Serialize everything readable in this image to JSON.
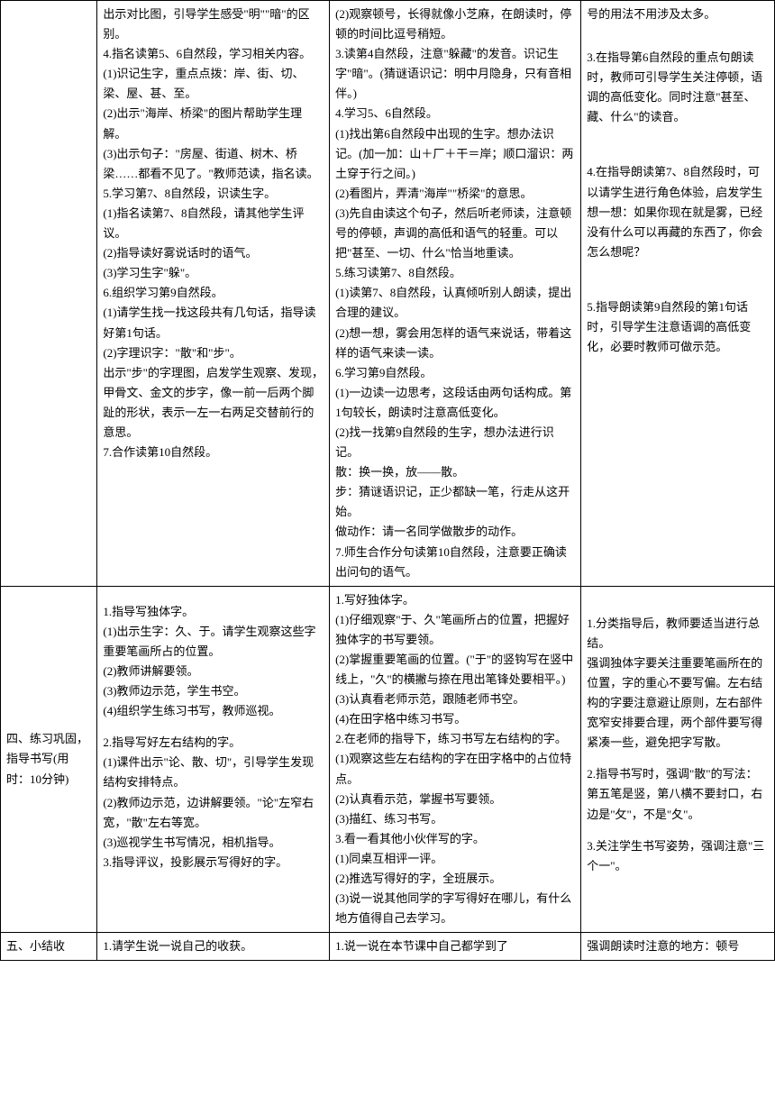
{
  "row1": {
    "col1": "",
    "col2_lines": [
      "出示对比图，引导学生感受\"明\"\"暗\"的区别。",
      "4.指名读第5、6自然段，学习相关内容。",
      "(1)识记生字，重点点拨：岸、街、切、梁、屋、甚、至。",
      "(2)出示\"海岸、桥梁\"的图片帮助学生理解。",
      "(3)出示句子：\"房屋、街道、树木、桥梁……都看不见了。\"教师范读，指名读。",
      "5.学习第7、8自然段，识读生字。",
      "(1)指名读第7、8自然段，请其他学生评议。",
      "(2)指导读好雾说话时的语气。",
      "(3)学习生字\"躲\"。",
      "6.组织学习第9自然段。",
      "(1)请学生找一找这段共有几句话，指导读好第1句话。",
      "(2)字理识字：\"散\"和\"步\"。",
      "出示\"步\"的字理图，启发学生观察、发现，甲骨文、金文的步字，像一前一后两个脚趾的形状，表示一左一右两足交替前行的意思。",
      "7.合作读第10自然段。"
    ],
    "col3_lines": [
      "(2)观察顿号，长得就像小芝麻，在朗读时，停顿的时间比逗号稍短。",
      "3.读第4自然段，注意\"躲藏\"的发音。识记生字\"暗\"。(猜谜语识记：明中月隐身，只有音相伴。)",
      "4.学习5、6自然段。",
      "(1)找出第6自然段中出现的生字。想办法识记。(加一加：山＋厂＋干＝岸；顺口溜识：两土穿于行之间。)",
      "(2)看图片，弄清\"海岸\"\"桥梁\"的意思。",
      "(3)先自由读这个句子，然后听老师读，注意顿号的停顿，声调的高低和语气的轻重。可以把\"甚至、一切、什么\"恰当地重读。",
      "5.练习读第7、8自然段。",
      "(1)读第7、8自然段，认真倾听别人朗读，提出合理的建议。",
      "(2)想一想，雾会用怎样的语气来说话，带着这样的语气来读一读。",
      "6.学习第9自然段。",
      "(1)一边读一边思考，这段话由两句话构成。第1句较长，朗读时注意高低变化。",
      "(2)找一找第9自然段的生字，想办法进行识记。",
      "散：换一换，放——散。",
      "步：猜谜语识记，正少都缺一笔，行走从这开始。",
      "做动作：请一名同学做散步的动作。",
      "7.师生合作分句读第10自然段，注意要正确读出问句的语气。"
    ],
    "col4_lines": [
      "号的用法不用涉及太多。",
      "",
      "",
      "3.在指导第6自然段的重点句朗读时，教师可引导学生关注停顿，语调的高低变化。同时注意\"甚至、藏、什么\"的读音。",
      "",
      "",
      "",
      "4.在指导朗读第7、8自然段时，可以请学生进行角色体验，启发学生想一想：如果你现在就是雾，已经没有什么可以再藏的东西了，你会怎么想呢？",
      "",
      "",
      "",
      "5.指导朗读第9自然段的第1句话时，引导学生注意语调的高低变化，必要时教师可做示范。"
    ]
  },
  "row2": {
    "col1": "四、练习巩固，指导书写(用时：10分钟)",
    "col2_lines": [
      "",
      "1.指导写独体字。",
      "(1)出示生字：久、于。请学生观察这些字重要笔画所占的位置。",
      "(2)教师讲解要领。",
      "(3)教师边示范，学生书空。",
      "(4)组织学生练习书写，教师巡视。",
      "",
      "2.指导写好左右结构的字。",
      "(1)课件出示\"论、散、切\"，引导学生发现结构安排特点。",
      "(2)教师边示范，边讲解要领。\"论\"左窄右宽，\"散\"左右等宽。",
      "(3)巡视学生书写情况，相机指导。",
      "3.指导评议，投影展示写得好的字。"
    ],
    "col3_lines": [
      "1.写好独体字。",
      "(1)仔细观察\"于、久\"笔画所占的位置，把握好独体字的书写要领。",
      "(2)掌握重要笔画的位置。(\"于\"的竖钩写在竖中线上，\"久\"的横撇与捺在甩出笔锋处要相平。)",
      "(3)认真看老师示范，跟随老师书空。",
      "(4)在田字格中练习书写。",
      "2.在老师的指导下，练习书写左右结构的字。",
      "(1)观察这些左右结构的字在田字格中的占位特点。",
      "(2)认真看示范，掌握书写要领。",
      "(3)描红、练习书写。",
      "3.看一看其他小伙伴写的字。",
      "(1)同桌互相评一评。",
      "(2)推选写得好的字，全班展示。",
      "(3)说一说其他同学的字写得好在哪儿，有什么地方值得自己去学习。"
    ],
    "col4_lines": [
      "",
      "",
      "1.分类指导后，教师要适当进行总结。",
      "强调独体字要关注重要笔画所在的位置，字的重心不要写偏。左右结构的字要注意避让原则，左右部件宽窄安排要合理，两个部件要写得紧凑一些，避免把字写散。",
      "",
      "2.指导书写时，强调\"散\"的写法：　第五笔是竖，第八横不要封口，右边是\"攵\"，不是\"夂\"。",
      "",
      "3.关注学生书写姿势，强调注意\"三个一\"。"
    ]
  },
  "row3": {
    "col1": "五、小结收",
    "col2": "1.请学生说一说自己的收获。",
    "col3": "1.说一说在本节课中自己都学到了",
    "col4": "强调朗读时注意的地方：顿号"
  }
}
